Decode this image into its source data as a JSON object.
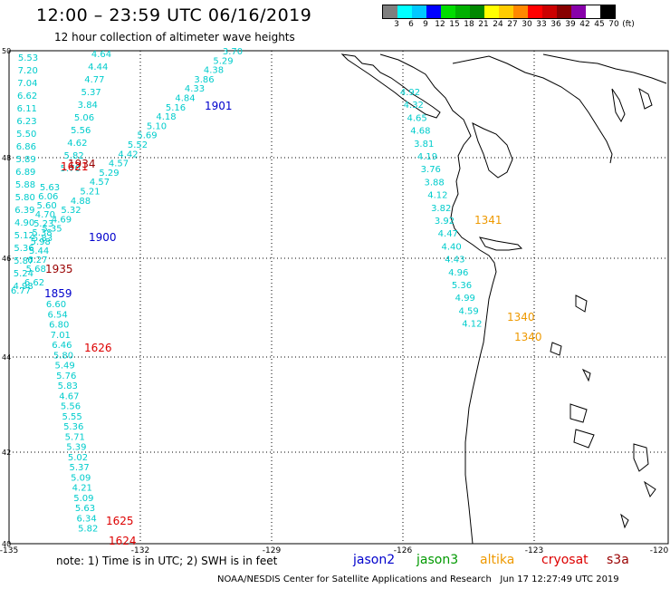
{
  "header": {
    "title": "12:00 – 23:59 UTC 06/16/2019",
    "subtitle": "12 hour collection of altimeter wave heights"
  },
  "colorbar": {
    "colors": [
      "#7f7f7f",
      "#00ffff",
      "#00c8ff",
      "#0000ff",
      "#00dd00",
      "#00b000",
      "#008800",
      "#ffff00",
      "#ffcc00",
      "#ff8800",
      "#ff0000",
      "#cc0000",
      "#880000",
      "#8800aa",
      "#ffffff",
      "#000000"
    ],
    "labels": [
      "3",
      "6",
      "9",
      "12",
      "15",
      "18",
      "21",
      "24",
      "27",
      "30",
      "33",
      "36",
      "39",
      "42",
      "45",
      "70",
      "(ft)"
    ]
  },
  "axes": {
    "lat_labels": [
      "50",
      "48",
      "46",
      "44",
      "42",
      "40"
    ],
    "lon_labels": [
      "-135",
      "-132",
      "-129",
      "-126",
      "-123",
      "-120"
    ]
  },
  "tracks": [
    {
      "pass": "1901",
      "pass_color": "#0000cc",
      "values": [
        "3.70",
        "5.29",
        "4.38",
        "3.86",
        "4.33",
        "4.84",
        "5.16",
        "4.18",
        "5.10",
        "5.69",
        "5.52",
        "4.42",
        "4.57",
        "5.29",
        "4.57",
        "5.21",
        "4.88",
        "5.32",
        "4.69",
        "5.35",
        "5.83"
      ]
    },
    {
      "pass": "1900",
      "pass_color": "#0000cc",
      "values": [
        "4.64",
        "4.44",
        "4.77",
        "5.37",
        "3.84",
        "5.06",
        "5.56",
        "4.62",
        "5.82",
        "5.70"
      ]
    },
    {
      "pass": "1934",
      "pass_color": "#990000",
      "values": [
        "5.53",
        "7.20",
        "7.04",
        "6.62",
        "6.11",
        "6.23",
        "5.50",
        "6.86",
        "5.89",
        "6.89",
        "5.88",
        "5.80",
        "6.39",
        "4.90",
        "5.12",
        "5.36",
        "5.87",
        "5.24",
        "4.98"
      ]
    },
    {
      "pass": "1935",
      "pass_color": "#990000",
      "values": [
        "5.63",
        "6.06",
        "5.60",
        "4.70",
        "5.23",
        "5.38",
        "5.98",
        "5.44",
        "6.27",
        "5.68"
      ]
    },
    {
      "pass": "1859",
      "pass_color": "#0000cc",
      "values": [
        "6.62",
        "6.77"
      ]
    },
    {
      "pass": "1626",
      "pass_color": "#dd0000",
      "values": [
        "6.60",
        "6.54",
        "6.80",
        "7.01",
        "6.46",
        "5.80",
        "5.49",
        "5.76",
        "5.83",
        "4.67",
        "5.56",
        "5.55",
        "5.36",
        "5.71",
        "5.39",
        "5.02",
        "5.37",
        "5.09",
        "4.21",
        "5.09",
        "5.63",
        "6.34",
        "5.82"
      ]
    },
    {
      "pass": "1341",
      "pass_color": "#ee9900",
      "values": [
        "4.92",
        "4.32",
        "4.65",
        "4.68",
        "3.81",
        "4.19",
        "3.76",
        "3.88",
        "4.12",
        "3.82",
        "3.92",
        "4.47",
        "4.40",
        "4.43",
        "4.96",
        "5.36",
        "4.99",
        "4.59",
        "4.12"
      ]
    }
  ],
  "extra_pass_labels": [
    {
      "text": "1621",
      "color": "#dd0000"
    },
    {
      "text": "1625",
      "color": "#dd0000"
    },
    {
      "text": "1624",
      "color": "#dd0000"
    },
    {
      "text": "1340",
      "color": "#ee9900"
    },
    {
      "text": "1340",
      "color": "#ee9900"
    }
  ],
  "legend": {
    "note": "note:  1) Time is in UTC;  2) SWH is in feet",
    "items": [
      {
        "label": "jason2",
        "color": "#0000cc"
      },
      {
        "label": "jason3",
        "color": "#009900"
      },
      {
        "label": "altika",
        "color": "#ee9900"
      },
      {
        "label": "cryosat",
        "color": "#dd0000"
      },
      {
        "label": "s3a",
        "color": "#990000"
      }
    ]
  },
  "footer": {
    "credit": "NOAA/NESDIS Center for Satellite Applications and Research",
    "timestamp": "Jun 17 12:27:49 UTC 2019"
  },
  "colors": {
    "value_text": "#00cccc",
    "grid": "#000000",
    "coast": "#000000"
  }
}
